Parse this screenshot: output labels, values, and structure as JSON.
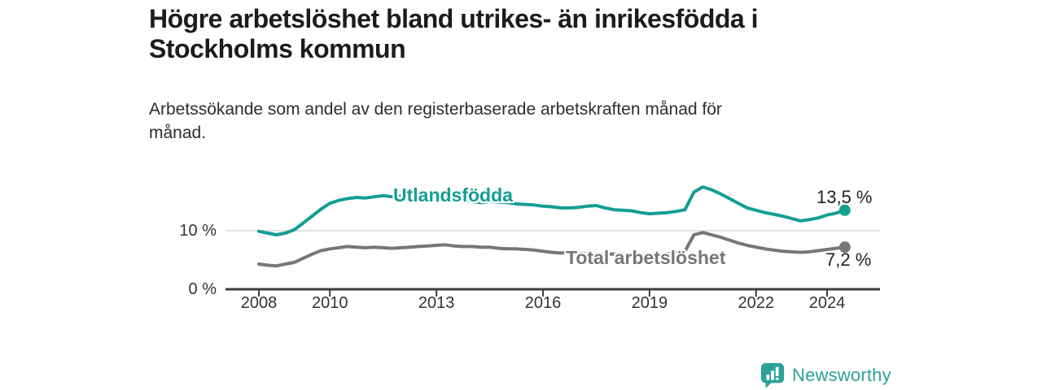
{
  "header": {
    "title_line1": "Högre arbetslöshet bland utrikes- än inrikesfödda i",
    "title_line2": "Stockholms kommun",
    "subtitle_line1": "Arbetssökande som andel av den registerbaserade arbetskraften månad för",
    "subtitle_line2": "månad."
  },
  "chart_data": {
    "type": "line",
    "title": "Högre arbetslöshet bland utrikes- än inrikesfödda i Stockholms kommun",
    "subtitle": "Arbetssökande som andel av den registerbaserade arbetskraften månad för månad.",
    "unit": "%",
    "x_start": 2008,
    "x_step": 0.25,
    "x_end": 2024.5,
    "x_ticks": [
      2008,
      2010,
      2013,
      2016,
      2019,
      2022,
      2024
    ],
    "y_ticks": [
      {
        "value": 0,
        "label": "0 %"
      },
      {
        "value": 10,
        "label": "10 %"
      }
    ],
    "ylim": [
      0,
      19
    ],
    "grid": "single horizontal gridline at 10 %",
    "legend_position": "inline labels on lines, end-value labels at right",
    "series": [
      {
        "name": "Utlandsfödda",
        "color": "#149e92",
        "end_label": "13,5 %",
        "end_value": 13.5,
        "values": [
          9.9,
          9.6,
          9.3,
          9.6,
          10.2,
          11.3,
          12.5,
          13.7,
          14.7,
          15.2,
          15.5,
          15.7,
          15.6,
          15.8,
          16.0,
          15.8,
          15.9,
          16.0,
          15.9,
          15.8,
          15.8,
          15.7,
          15.6,
          15.3,
          15.0,
          14.8,
          15.0,
          14.9,
          14.8,
          14.6,
          14.5,
          14.4,
          14.2,
          14.1,
          13.9,
          13.9,
          14.0,
          14.2,
          14.3,
          13.9,
          13.6,
          13.5,
          13.4,
          13.1,
          12.9,
          13.0,
          13.1,
          13.3,
          13.6,
          16.6,
          17.5,
          17.0,
          16.3,
          15.5,
          14.7,
          13.9,
          13.5,
          13.1,
          12.8,
          12.5,
          12.1,
          11.7,
          11.9,
          12.2,
          12.7,
          13.0,
          13.5
        ]
      },
      {
        "name": "Total arbetslöshet",
        "color": "#76767a",
        "end_label": "7,2 %",
        "end_value": 7.2,
        "values": [
          4.3,
          4.1,
          4.0,
          4.3,
          4.6,
          5.3,
          6.0,
          6.6,
          6.9,
          7.1,
          7.3,
          7.2,
          7.1,
          7.2,
          7.1,
          7.0,
          7.1,
          7.2,
          7.3,
          7.4,
          7.5,
          7.6,
          7.4,
          7.3,
          7.3,
          7.2,
          7.2,
          7.0,
          6.9,
          6.9,
          6.8,
          6.7,
          6.5,
          6.3,
          6.2,
          6.2,
          6.1,
          6.1,
          6.0,
          6.0,
          6.0,
          6.0,
          5.9,
          5.9,
          6.0,
          6.0,
          6.1,
          6.2,
          6.5,
          9.3,
          9.7,
          9.3,
          8.9,
          8.4,
          7.9,
          7.5,
          7.2,
          6.9,
          6.7,
          6.5,
          6.4,
          6.3,
          6.4,
          6.6,
          6.8,
          7.0,
          7.2
        ]
      }
    ]
  },
  "axis_colors": {
    "baseline": "#3d3d3d",
    "gridline": "#d9d9d9",
    "tick_text": "#333333"
  },
  "footer": {
    "brand": "Newsworthy",
    "brand_color": "#2aa199"
  }
}
